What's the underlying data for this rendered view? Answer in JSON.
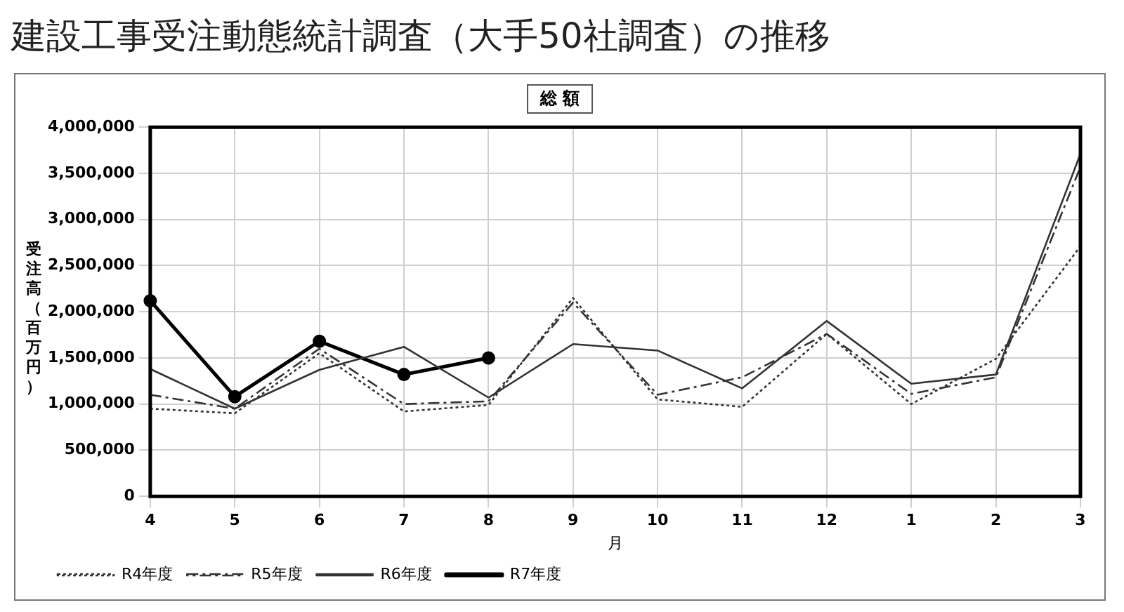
{
  "chart_data": {
    "type": "line",
    "title": "建設工事受注動態統計調査（大手50社調査）の推移",
    "subtitle": "総 額",
    "xlabel": "月",
    "ylabel": "受注高（百万円）",
    "categories": [
      "4",
      "5",
      "6",
      "7",
      "8",
      "9",
      "10",
      "11",
      "12",
      "1",
      "2",
      "3"
    ],
    "series": [
      {
        "name": "R4年度",
        "color": "#333333",
        "line_style": "dotted",
        "marker": "none",
        "values": [
          950000,
          900000,
          1550000,
          920000,
          990000,
          2150000,
          1050000,
          970000,
          1760000,
          1000000,
          1490000,
          2710000
        ]
      },
      {
        "name": "R5年度",
        "color": "#333333",
        "line_style": "dashed",
        "marker": "none",
        "values": [
          1100000,
          950000,
          1600000,
          1000000,
          1030000,
          2100000,
          1100000,
          1290000,
          1760000,
          1110000,
          1290000,
          3570000
        ]
      },
      {
        "name": "R6年度",
        "color": "#333333",
        "line_style": "solid",
        "marker": "none",
        "values": [
          1380000,
          950000,
          1370000,
          1620000,
          1070000,
          1650000,
          1580000,
          1170000,
          1900000,
          1220000,
          1320000,
          3710000
        ]
      },
      {
        "name": "R7年度",
        "color": "#000000",
        "line_style": "solid",
        "marker": "circle",
        "values": [
          2120000,
          1080000,
          1680000,
          1320000,
          1500000,
          null,
          null,
          null,
          null,
          null,
          null,
          null
        ]
      }
    ],
    "ylim": [
      0,
      4000000
    ],
    "yticks": [
      0,
      {
        "value": 500000,
        "label": "500,000"
      },
      {
        "value": 1000000,
        "label": "1,000,000"
      },
      {
        "value": 1500000,
        "label": "1,500,000"
      },
      {
        "value": 2000000,
        "label": "2,000,000"
      },
      {
        "value": 2500000,
        "label": "2,500,000"
      },
      {
        "value": 3000000,
        "label": "3,000,000"
      },
      {
        "value": 3500000,
        "label": "3,500,000"
      },
      {
        "value": 4000000,
        "label": "4,000,000"
      }
    ],
    "grid": true,
    "legend": "bottom left"
  }
}
